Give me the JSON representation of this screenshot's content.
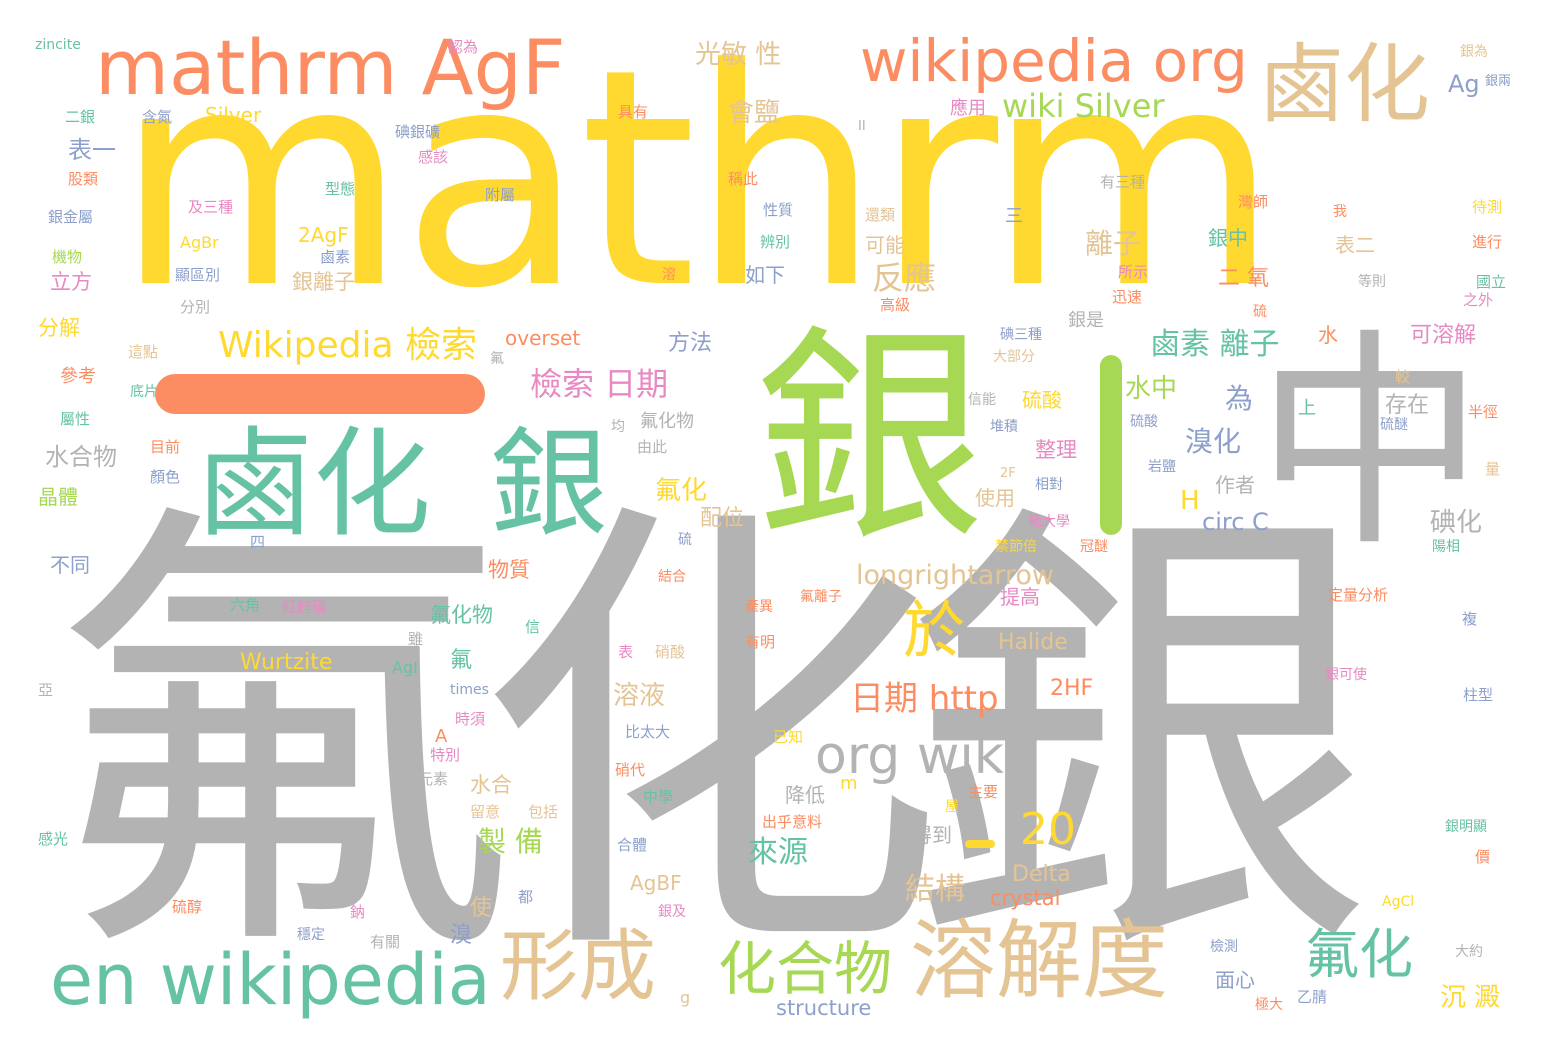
{
  "palette": {
    "gray": "#b3b3b3",
    "yellow": "#ffd92f",
    "green": "#a6d854",
    "teal": "#66c2a5",
    "orange": "#fc8d62",
    "tan": "#e5c494",
    "pink": "#e78ac3",
    "blue": "#8da0cb"
  },
  "words": {
    "silver_fluoride": "氟化銀",
    "mathrm_big": "mathrm",
    "silver_big": "銀",
    "zhong": "中",
    "halide_silver_1": "鹵化",
    "halide_silver_2": "銀",
    "mathrm_agf": "mathrm AgF",
    "halide_top": "鹵化",
    "wikipedia_org": "wikipedia org",
    "en_wikipedia": "en wikipedia",
    "xingcheng": "形成",
    "solubility": "溶解度",
    "org_wiki": "org wiki",
    "compound": "化合物",
    "fluoride_2": "氟化",
    "yu": "於",
    "twenty": "20",
    "wikipedia_search": "Wikipedia 檢索",
    "search_date": "檢索 日期",
    "wiki_silver": "wiki Silver",
    "date_http": "日期 http",
    "halogen_ion": "鹵素 離子",
    "longrightarrow": "longrightarrow",
    "fanying": "反應",
    "lizi": "離子",
    "water_mid": "水中",
    "wei": "為",
    "bromide": "溴化",
    "iodide": "碘化",
    "source": "來源",
    "structure_cn": "結構",
    "preparation": "製 備",
    "precipitate": "沉 澱",
    "circ_c": "circ C",
    "h": "H",
    "fluoride_3": "氟化",
    "peiwei": "配位",
    "solution": "溶液",
    "photosensitive": "光敏 性",
    "salt": "會鹽",
    "biaoyi": "表一",
    "overset": "overset",
    "fangfa": "方法",
    "soluble": "可溶解",
    "cunzai": "存在",
    "halide": "Halide",
    "wurtzite": "Wurtzite",
    "twohf": "2HF",
    "crystal": "crystal",
    "delta": "Delta",
    "agbf": "AgBF",
    "structure": "structure",
    "zincite": "zincite",
    "silver_l": "Silver",
    "ag": "Ag",
    "two_agf": "2AgF",
    "agbr": "AgBr",
    "ruxia": "如下",
    "keneng": "可能",
    "shuihewu": "水合物",
    "yinlizi": "銀離子",
    "fenjie": "分解",
    "lifang": "立方",
    "wuzhi": "物質",
    "shuihe": "水合",
    "liusuan": "硫酸",
    "zhengli": "整理",
    "shiyong": "使用",
    "tigao": "提高",
    "zuozhe": "作者",
    "jianglow": "降低",
    "dedao": "得到",
    "mianxin": "面心",
    "fuhuawu": "氟化物",
    "fuhuawu2": "氟化物",
    "fu": "氟",
    "jinghti": "晶體",
    "butong": "不同",
    "yinshi": "銀是",
    "yinzhong": "銀中",
    "biaoer": "表二",
    "cankao": "參考",
    "shui": "水",
    "shang": "上",
    "er_yang": "二 氧",
    "shi": "使",
    "xiu": "溴",
    "agl": "AgI",
    "times": "times",
    "a_upper": "A",
    "sanli": "三",
    "m_small": "m",
    "g_small": "g",
    "yin_zhong_bottom": "銀中",
    "dingliang": "定量分析",
    "agcl": "AgCl",
    "small_1": "認為",
    "small_2": "含氮",
    "small_3": "二銀",
    "small_4": "股類",
    "small_5": "銀金屬",
    "small_6": "機物",
    "small_7": "及三種",
    "small_8": "顯區別",
    "small_9": "分別",
    "small_10": "這點",
    "small_11": "底片",
    "small_12": "屬性",
    "small_13": "目前",
    "small_14": "顏色",
    "small_15": "型態",
    "small_16": "附屬",
    "small_17": "碘銀礦",
    "small_18": "感該",
    "small_19": "具有",
    "small_20": "應用",
    "small_21": "銀為",
    "small_22": "稱此",
    "small_23": "有三種",
    "small_24": "性質",
    "small_25": "還類",
    "small_26": "灣師",
    "small_27": "鹵素",
    "small_28": "辨別",
    "small_29": "高級",
    "small_30": "所示",
    "small_31": "迅速",
    "small_32": "等則",
    "small_33": "待測",
    "small_34": "進行",
    "small_35": "國立",
    "small_36": "之外",
    "small_37": "碘三種",
    "small_38": "大部分",
    "small_39": "信能",
    "small_40": "堆積",
    "small_41": "硫酸",
    "small_42": "岩鹽",
    "small_43": "半徑",
    "small_44": "相對",
    "small_45": "範大學",
    "small_46": "禁節倍",
    "small_47": "冠醚",
    "small_48": "陽相",
    "small_49": "結合",
    "small_50": "氟離子",
    "small_51": "產異",
    "small_52": "六角",
    "small_53": "紅鋅礦",
    "small_54": "有明",
    "small_55": "硝酸",
    "small_56": "時須",
    "small_57": "特別",
    "small_58": "比太大",
    "small_59": "已知",
    "small_60": "元素",
    "small_61": "硝代",
    "small_62": "主要",
    "small_63": "中學",
    "small_64": "留意",
    "small_65": "包括",
    "small_66": "出乎意料",
    "small_67": "感光",
    "small_68": "合體",
    "small_69": "硫醇",
    "small_70": "都",
    "small_71": "鈉",
    "small_72": "穩定",
    "small_73": "有關",
    "small_74": "銀及",
    "small_75": "檢測",
    "small_76": "極大",
    "small_77": "乙腈",
    "small_78": "大約",
    "small_79": "銀明顯",
    "small_80": "價",
    "small_81": "柱型",
    "small_82": "銀可使",
    "small_83": "複",
    "small_84": "較",
    "small_85": "量",
    "small_86": "由此",
    "small_87": "均",
    "small_88": "氟",
    "small_89": "雖",
    "small_90": "亞",
    "small_91": "信",
    "small_92": "表",
    "small_93": "四",
    "small_94": "硫",
    "small_95": "硫",
    "small_96": "溶",
    "small_97": "銀兩",
    "small_98": "我",
    "small_99": "2F",
    "small_100": "II",
    "small_101": "屋",
    "small_102": "硫醚"
  }
}
